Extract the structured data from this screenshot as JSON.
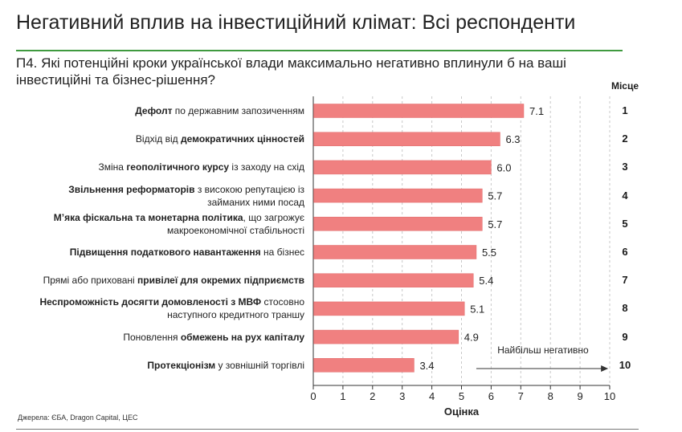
{
  "page": {
    "title": "Негативний вплив на інвестиційний клімат: Всі респонденти",
    "question": "П4. Які потенційні кроки української влади максимально негативно вплинули б на ваші інвестиційні та бізнес-рішення?",
    "rank_header": "Місце",
    "source": "Джерела: ЄБА, Dragon Capital, ЦЕС"
  },
  "colors": {
    "bar": "#f08080",
    "bar_stroke": "#e06a6a",
    "grid": "#c8c8c8",
    "title_rule": "#3f9a3f"
  },
  "chart_data": {
    "type": "bar",
    "orientation": "horizontal",
    "xlabel": "Оцінка",
    "xlim": [
      0,
      10
    ],
    "xticks": [
      0,
      1,
      2,
      3,
      4,
      5,
      6,
      7,
      8,
      9,
      10
    ],
    "grid": "vertical dashed",
    "annotation": "Найбільш негативно",
    "categories": [
      {
        "parts": [
          {
            "t": "Дефолт",
            "b": true
          },
          {
            "t": " по державним запозиченням",
            "b": false
          }
        ]
      },
      {
        "parts": [
          {
            "t": "Відхід від ",
            "b": false
          },
          {
            "t": "демократичних цінностей",
            "b": true
          }
        ]
      },
      {
        "parts": [
          {
            "t": "Зміна ",
            "b": false
          },
          {
            "t": "геополітичного курсу",
            "b": true
          },
          {
            "t": " із заходу на схід",
            "b": false
          }
        ]
      },
      {
        "parts": [
          {
            "t": "Звільнення реформаторів",
            "b": true
          },
          {
            "t": " з високою репутацією із займаних ними посад",
            "b": false
          }
        ]
      },
      {
        "parts": [
          {
            "t": "М’яка фіскальна та монетарна політика",
            "b": true
          },
          {
            "t": ", що загрожує макроекономічної стабільності",
            "b": false
          }
        ]
      },
      {
        "parts": [
          {
            "t": "Підвищення податкового навантаження",
            "b": true
          },
          {
            "t": " на бізнес",
            "b": false
          }
        ]
      },
      {
        "parts": [
          {
            "t": "Прямі або приховані ",
            "b": false
          },
          {
            "t": "привілеї для окремих підприємств",
            "b": true
          }
        ]
      },
      {
        "parts": [
          {
            "t": "Неспроможність досягти домовленості з МВФ",
            "b": true
          },
          {
            "t": " стосовно наступного кредитного траншу",
            "b": false
          }
        ]
      },
      {
        "parts": [
          {
            "t": "Поновлення ",
            "b": false
          },
          {
            "t": "обмежень на рух капіталу",
            "b": true
          }
        ]
      },
      {
        "parts": [
          {
            "t": "Протекціонізм",
            "b": true
          },
          {
            "t": " у зовнішній торгівлі",
            "b": false
          }
        ]
      }
    ],
    "values": [
      7.1,
      6.3,
      6.0,
      5.7,
      5.7,
      5.5,
      5.4,
      5.1,
      4.9,
      3.4
    ],
    "value_labels": [
      "7.1",
      "6.3",
      "6.0",
      "5.7",
      "5.7",
      "5.5",
      "5.4",
      "5.1",
      "4.9",
      "3.4"
    ],
    "ranks": [
      "1",
      "2",
      "3",
      "4",
      "5",
      "6",
      "7",
      "8",
      "9",
      "10"
    ]
  }
}
